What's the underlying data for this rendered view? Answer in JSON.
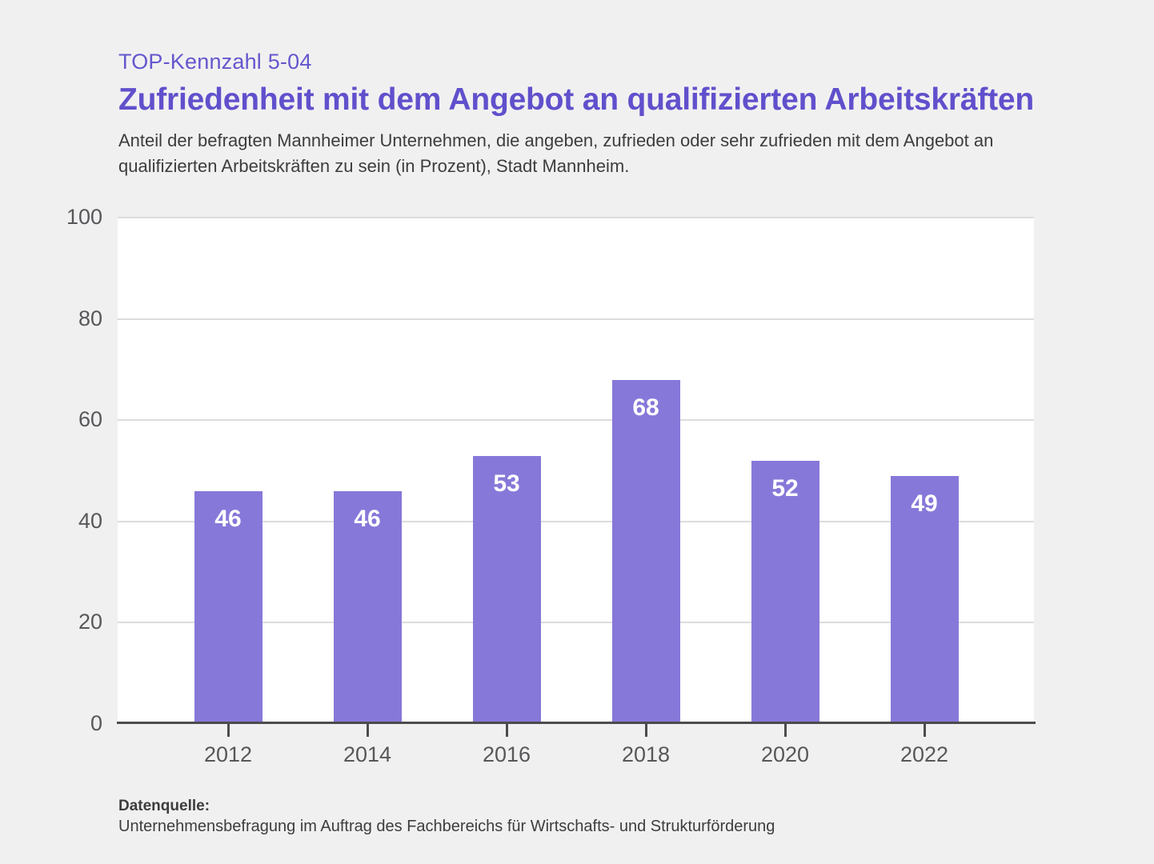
{
  "page": {
    "background": "#f1f0f1",
    "accent_purple": "#6457cd",
    "bar_purple": "#8678d9",
    "text_dark": "#3d3d3d",
    "axis_gray": "#57575a"
  },
  "header": {
    "kicker": "TOP-Kennzahl 5-04",
    "title": "Zufriedenheit mit dem Angebot an qualifizierten Arbeitskräften",
    "subtitle": "Anteil der befragten Mannheimer Unternehmen, die angeben, zufrieden oder sehr zufrieden mit dem Angebot an qualifizierten Arbeitskräften zu sein (in Prozent), Stadt Mannheim."
  },
  "chart_data": {
    "type": "bar",
    "categories": [
      "2012",
      "2014",
      "2016",
      "2018",
      "2020",
      "2022"
    ],
    "values": [
      46,
      46,
      53,
      68,
      52,
      49
    ],
    "title": "",
    "xlabel": "",
    "ylabel": "",
    "ylim": [
      0,
      100
    ],
    "yticks": [
      0,
      20,
      40,
      60,
      80,
      100
    ],
    "grid": true,
    "legend": false,
    "bar_color": "#8678d9",
    "value_label_color": "#ffffff"
  },
  "footer": {
    "source_label": "Datenquelle:",
    "source_text": "Unternehmensbefragung im Auftrag des Fachbereichs für Wirtschafts- und Strukturförderung"
  }
}
